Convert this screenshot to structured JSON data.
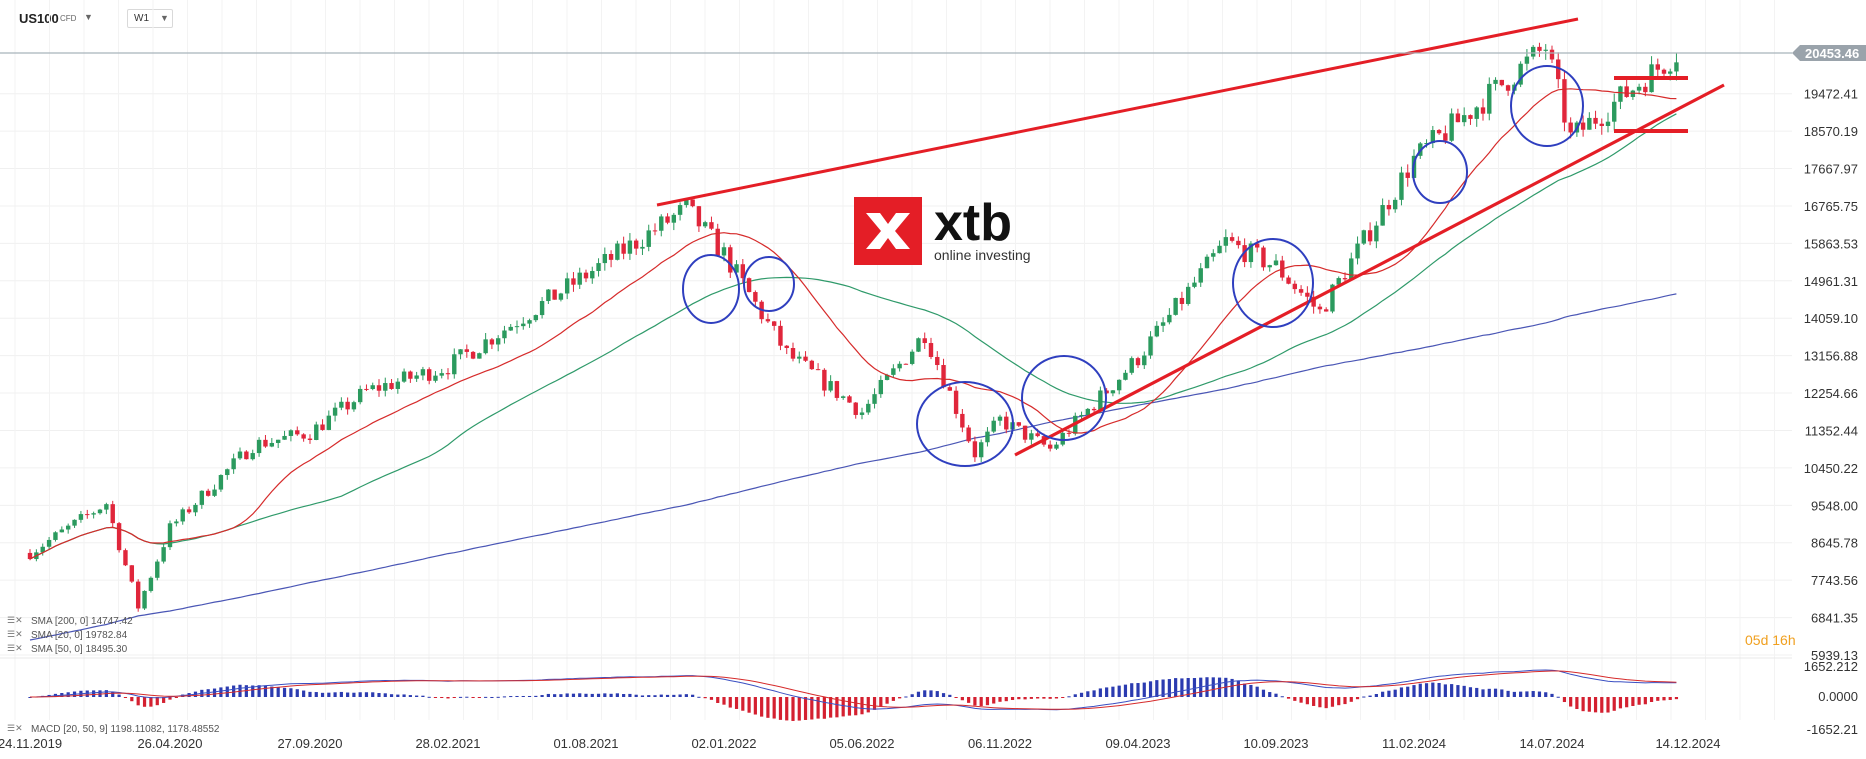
{
  "header": {
    "symbol": "US100",
    "symbol_type": "CFD",
    "timeframe": "W1"
  },
  "logo": {
    "wordmark": "xtb",
    "tagline": "online investing"
  },
  "countdown": {
    "days": "05d",
    "hours": "16h"
  },
  "price_badge": "20453.46",
  "legend": [
    {
      "label": "SMA [200, 0] 14747.42"
    },
    {
      "label": "SMA [20, 0] 19782.84"
    },
    {
      "label": "SMA [50, 0] 18495.30"
    }
  ],
  "macd_legend": "MACD [20, 50, 9] 1198.11082, 1178.48552",
  "colors": {
    "bull": "#2b9a5e",
    "bear": "#e0263b",
    "sma20": "#d62b2b",
    "sma50": "#2f9a6a",
    "sma200": "#4a56b5",
    "trend": "#e41e26",
    "circle": "#2f3fbf",
    "badge": "#9aa3ab",
    "countdown": "#f0a020"
  },
  "chart_data": {
    "type": "candlestick",
    "instrument": "US100",
    "timeframe": "W1",
    "y_ticks": [
      "20453.46",
      "19472.41",
      "18570.19",
      "17667.97",
      "16765.75",
      "15863.53",
      "14961.31",
      "14059.10",
      "13156.88",
      "12254.66",
      "11352.44",
      "10450.22",
      "9548.00",
      "8645.78",
      "7743.56",
      "6841.35",
      "5939.13"
    ],
    "x_ticks": [
      "24.11.2019",
      "26.04.2020",
      "27.09.2020",
      "28.02.2021",
      "01.08.2021",
      "02.01.2022",
      "05.06.2022",
      "06.11.2022",
      "09.04.2023",
      "10.09.2023",
      "11.02.2024",
      "14.07.2024",
      "14.12.2024"
    ],
    "ylim": [
      5939.13,
      20900
    ],
    "last_price": 20453.46,
    "weekly_close_path": [
      {
        "date": "24.11.2019",
        "close": 8400
      },
      {
        "date": "16.02.2020",
        "close": 9600
      },
      {
        "date": "22.03.2020",
        "close": 7100
      },
      {
        "date": "26.04.2020",
        "close": 9000
      },
      {
        "date": "26.07.2020",
        "close": 11000
      },
      {
        "date": "27.09.2020",
        "close": 11300
      },
      {
        "date": "29.11.2020",
        "close": 12300
      },
      {
        "date": "28.02.2021",
        "close": 12900
      },
      {
        "date": "01.08.2021",
        "close": 15100
      },
      {
        "date": "21.11.2021",
        "close": 16700
      },
      {
        "date": "02.01.2022",
        "close": 15600
      },
      {
        "date": "13.03.2022",
        "close": 13200
      },
      {
        "date": "05.06.2022",
        "close": 11800
      },
      {
        "date": "14.08.2022",
        "close": 13700
      },
      {
        "date": "09.10.2022",
        "close": 10800
      },
      {
        "date": "06.11.2022",
        "close": 11600
      },
      {
        "date": "01.01.2023",
        "close": 10900
      },
      {
        "date": "09.04.2023",
        "close": 13100
      },
      {
        "date": "16.07.2023",
        "close": 15900
      },
      {
        "date": "10.09.2023",
        "close": 15300
      },
      {
        "date": "29.10.2023",
        "close": 14200
      },
      {
        "date": "11.02.2024",
        "close": 17900
      },
      {
        "date": "07.07.2024",
        "close": 20600
      },
      {
        "date": "04.08.2024",
        "close": 18400
      },
      {
        "date": "01.12.2024",
        "close": 20453
      }
    ],
    "macd": {
      "y_ticks": [
        "1652.212",
        "0.0000",
        "-1652.21"
      ],
      "macd": 1198.11082,
      "signal": 1178.48552
    },
    "sma": [
      {
        "name": "SMA [200, 0]",
        "value": 14747.42
      },
      {
        "name": "SMA [20, 0]",
        "value": 19782.84
      },
      {
        "name": "SMA [50, 0]",
        "value": 18495.3
      }
    ]
  }
}
